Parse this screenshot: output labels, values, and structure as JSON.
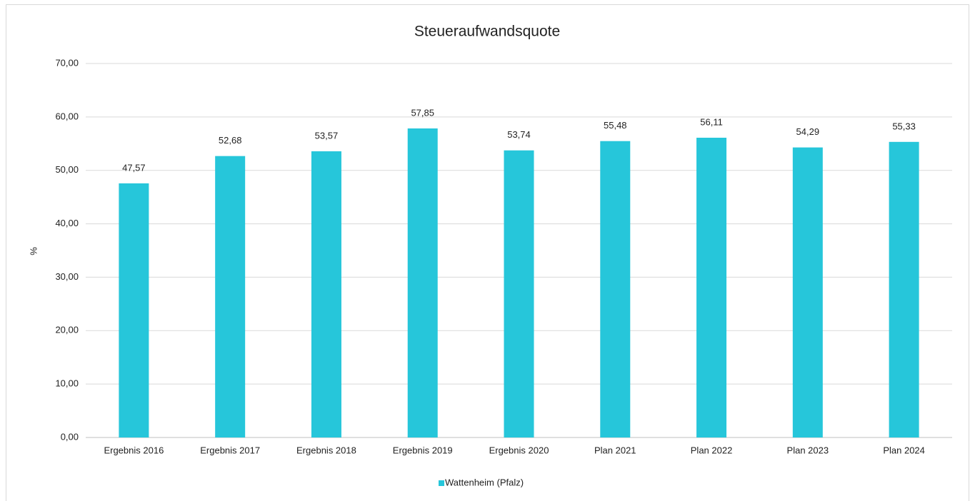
{
  "chart_data": {
    "type": "bar",
    "title": "Steueraufwandsquote",
    "y_label": "%",
    "categories": [
      "Ergebnis 2016",
      "Ergebnis 2017",
      "Ergebnis 2018",
      "Ergebnis 2019",
      "Ergebnis 2020",
      "Plan 2021",
      "Plan 2022",
      "Plan 2023",
      "Plan 2024"
    ],
    "series": [
      {
        "name": "Wattenheim (Pfalz)",
        "color": "#26c6da",
        "values": [
          47.57,
          52.68,
          53.57,
          57.85,
          53.74,
          55.48,
          56.11,
          54.29,
          55.33
        ],
        "value_labels": [
          "47,57",
          "52,68",
          "53,57",
          "57,85",
          "53,74",
          "55,48",
          "56,11",
          "54,29",
          "55,33"
        ]
      }
    ],
    "ylim": [
      0,
      70
    ],
    "yticks": [
      {
        "value": 0,
        "label": "0,00"
      },
      {
        "value": 10,
        "label": "10,00"
      },
      {
        "value": 20,
        "label": "20,00"
      },
      {
        "value": 30,
        "label": "30,00"
      },
      {
        "value": 40,
        "label": "40,00"
      },
      {
        "value": 50,
        "label": "50,00"
      },
      {
        "value": 60,
        "label": "60,00"
      },
      {
        "value": 70,
        "label": "70,00"
      }
    ],
    "grid": true,
    "legend": "bottom"
  }
}
